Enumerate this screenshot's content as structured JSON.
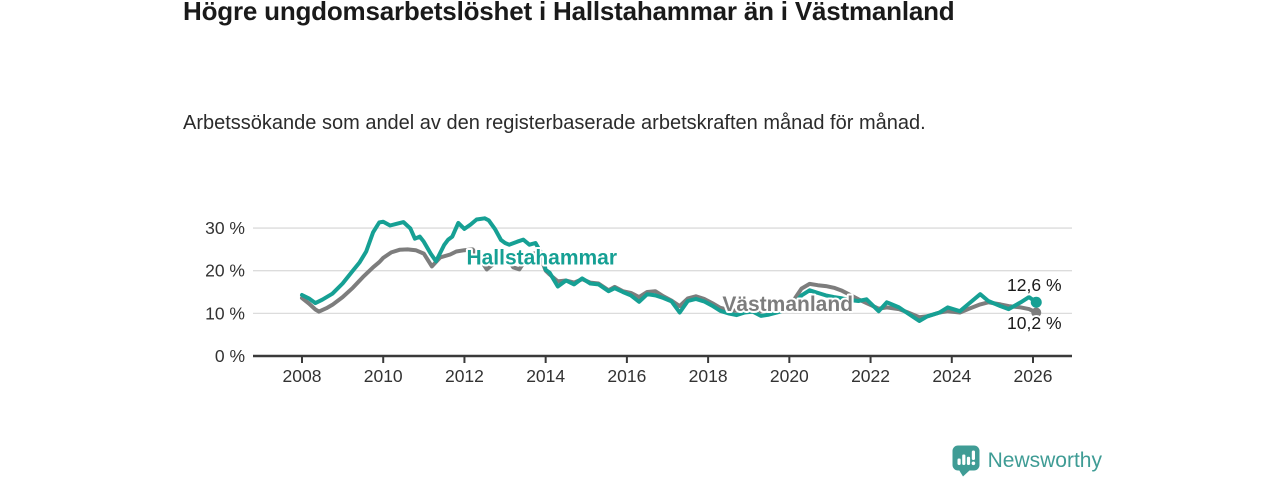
{
  "header": {
    "title": "Högre ungdomsarbetslöshet i Hallstahammar än i Västmanland",
    "subtitle": "Arbetssökande som andel av den registerbaserade arbetskraften månad för månad."
  },
  "footer": {
    "brand": "Newsworthy",
    "logo_icon": "newsworthy-bar-chart-bubble-icon",
    "brand_color": "#3f9c95"
  },
  "chart_data": {
    "type": "line",
    "title": "Högre ungdomsarbetslöshet i Hallstahammar än i Västmanland",
    "subtitle": "Arbetssökande som andel av den registerbaserade arbetskraften månad för månad.",
    "unit": "%",
    "grid": true,
    "x_range": [
      2007.04,
      2026.96
    ],
    "y_range": [
      0,
      34
    ],
    "x_ticks": [
      "2008",
      "2010",
      "2012",
      "2014",
      "2016",
      "2018",
      "2020",
      "2022",
      "2024",
      "2026"
    ],
    "x_tick_values": [
      2008,
      2010,
      2012,
      2014,
      2016,
      2018,
      2020,
      2022,
      2024,
      2026
    ],
    "y_ticks": [
      {
        "label": "30 %",
        "value": 30
      },
      {
        "label": "20 %",
        "value": 20
      },
      {
        "label": "10 %",
        "value": 10
      },
      {
        "label": "0 %",
        "value": 0
      }
    ],
    "colors": {
      "accent": "#16a094",
      "muted": "#7d7d7d",
      "axis": "#3a3a3a",
      "gridline": "#dcdcdc",
      "tick_text": "#333333"
    },
    "series": [
      {
        "name": "Västmanland",
        "color": "#7d7d7d",
        "end_label": "10,2 %",
        "end_value": 10.2,
        "end_dot_radius": 5,
        "points": [
          [
            2008.0,
            13.6
          ],
          [
            2008.17,
            12.3
          ],
          [
            2008.33,
            10.9
          ],
          [
            2008.42,
            10.4
          ],
          [
            2008.6,
            11.2
          ],
          [
            2008.75,
            12.0
          ],
          [
            2009.0,
            13.8
          ],
          [
            2009.25,
            16.0
          ],
          [
            2009.5,
            18.5
          ],
          [
            2009.75,
            20.8
          ],
          [
            2009.9,
            22.0
          ],
          [
            2010.0,
            23.0
          ],
          [
            2010.2,
            24.3
          ],
          [
            2010.4,
            24.9
          ],
          [
            2010.6,
            25.0
          ],
          [
            2010.8,
            24.8
          ],
          [
            2011.0,
            24.0
          ],
          [
            2011.2,
            21.0
          ],
          [
            2011.4,
            23.1
          ],
          [
            2011.65,
            23.8
          ],
          [
            2011.8,
            24.5
          ],
          [
            2012.0,
            24.8
          ],
          [
            2012.2,
            25.0
          ],
          [
            2012.4,
            22.5
          ],
          [
            2012.55,
            20.3
          ],
          [
            2012.7,
            21.5
          ],
          [
            2012.9,
            23.8
          ],
          [
            2013.05,
            23.0
          ],
          [
            2013.2,
            20.8
          ],
          [
            2013.35,
            20.3
          ],
          [
            2013.5,
            22.5
          ],
          [
            2013.65,
            23.8
          ],
          [
            2013.8,
            24.3
          ],
          [
            2013.9,
            22.5
          ],
          [
            2014.0,
            20.0
          ],
          [
            2014.1,
            19.1
          ],
          [
            2014.3,
            17.5
          ],
          [
            2014.5,
            17.7
          ],
          [
            2014.7,
            17.2
          ],
          [
            2014.9,
            18.0
          ],
          [
            2015.1,
            17.2
          ],
          [
            2015.3,
            17.0
          ],
          [
            2015.55,
            15.4
          ],
          [
            2015.7,
            16.2
          ],
          [
            2015.9,
            15.2
          ],
          [
            2016.1,
            14.8
          ],
          [
            2016.3,
            13.8
          ],
          [
            2016.5,
            15.0
          ],
          [
            2016.7,
            15.2
          ],
          [
            2016.9,
            14.0
          ],
          [
            2017.1,
            13.0
          ],
          [
            2017.3,
            11.7
          ],
          [
            2017.5,
            13.5
          ],
          [
            2017.7,
            14.0
          ],
          [
            2017.9,
            13.4
          ],
          [
            2018.1,
            12.4
          ],
          [
            2018.3,
            11.3
          ],
          [
            2018.5,
            10.8
          ],
          [
            2018.7,
            10.6
          ],
          [
            2018.9,
            11.0
          ],
          [
            2019.1,
            11.2
          ],
          [
            2019.3,
            10.5
          ],
          [
            2019.5,
            10.7
          ],
          [
            2019.7,
            11.1
          ],
          [
            2019.9,
            11.8
          ],
          [
            2020.1,
            13.0
          ],
          [
            2020.3,
            15.8
          ],
          [
            2020.5,
            16.9
          ],
          [
            2020.7,
            16.6
          ],
          [
            2020.9,
            16.4
          ],
          [
            2021.1,
            16.0
          ],
          [
            2021.3,
            15.3
          ],
          [
            2021.5,
            14.3
          ],
          [
            2021.7,
            13.3
          ],
          [
            2021.9,
            12.4
          ],
          [
            2022.2,
            11.1
          ],
          [
            2022.4,
            11.4
          ],
          [
            2022.7,
            11.0
          ],
          [
            2022.9,
            10.3
          ],
          [
            2023.2,
            9.1
          ],
          [
            2023.4,
            9.3
          ],
          [
            2023.7,
            10.2
          ],
          [
            2023.9,
            10.5
          ],
          [
            2024.2,
            10.2
          ],
          [
            2024.4,
            11.0
          ],
          [
            2024.7,
            12.1
          ],
          [
            2024.9,
            12.6
          ],
          [
            2025.2,
            12.1
          ],
          [
            2025.4,
            11.7
          ],
          [
            2025.7,
            11.4
          ],
          [
            2025.9,
            11.0
          ],
          [
            2026.08,
            10.2
          ]
        ]
      },
      {
        "name": "Hallstahammar",
        "color": "#16a094",
        "end_label": "12,6 %",
        "end_value": 12.6,
        "end_dot_radius": 5.5,
        "points": [
          [
            2008.0,
            14.3
          ],
          [
            2008.17,
            13.5
          ],
          [
            2008.33,
            12.4
          ],
          [
            2008.5,
            13.2
          ],
          [
            2008.75,
            14.6
          ],
          [
            2009.0,
            17.0
          ],
          [
            2009.25,
            20.0
          ],
          [
            2009.42,
            22.0
          ],
          [
            2009.58,
            24.5
          ],
          [
            2009.75,
            29.0
          ],
          [
            2009.9,
            31.3
          ],
          [
            2010.0,
            31.5
          ],
          [
            2010.17,
            30.6
          ],
          [
            2010.33,
            31.0
          ],
          [
            2010.5,
            31.4
          ],
          [
            2010.67,
            29.9
          ],
          [
            2010.78,
            27.5
          ],
          [
            2010.9,
            28.0
          ],
          [
            2011.0,
            26.8
          ],
          [
            2011.17,
            24.0
          ],
          [
            2011.3,
            22.2
          ],
          [
            2011.5,
            26.0
          ],
          [
            2011.6,
            27.3
          ],
          [
            2011.7,
            28.0
          ],
          [
            2011.85,
            31.2
          ],
          [
            2012.0,
            29.8
          ],
          [
            2012.15,
            30.8
          ],
          [
            2012.3,
            32.0
          ],
          [
            2012.5,
            32.3
          ],
          [
            2012.6,
            31.8
          ],
          [
            2012.75,
            29.8
          ],
          [
            2012.9,
            27.2
          ],
          [
            2013.0,
            26.5
          ],
          [
            2013.1,
            26.1
          ],
          [
            2013.3,
            26.8
          ],
          [
            2013.45,
            27.3
          ],
          [
            2013.6,
            26.1
          ],
          [
            2013.75,
            26.5
          ],
          [
            2013.9,
            24.0
          ],
          [
            2014.0,
            20.2
          ],
          [
            2014.1,
            19.5
          ],
          [
            2014.3,
            16.3
          ],
          [
            2014.5,
            17.7
          ],
          [
            2014.7,
            16.8
          ],
          [
            2014.9,
            18.2
          ],
          [
            2015.1,
            17.0
          ],
          [
            2015.3,
            16.8
          ],
          [
            2015.55,
            15.2
          ],
          [
            2015.7,
            15.9
          ],
          [
            2015.9,
            15.0
          ],
          [
            2016.1,
            14.2
          ],
          [
            2016.3,
            12.7
          ],
          [
            2016.5,
            14.5
          ],
          [
            2016.7,
            14.2
          ],
          [
            2016.9,
            13.6
          ],
          [
            2017.1,
            12.8
          ],
          [
            2017.3,
            10.2
          ],
          [
            2017.5,
            12.9
          ],
          [
            2017.7,
            13.4
          ],
          [
            2017.9,
            12.8
          ],
          [
            2018.1,
            11.8
          ],
          [
            2018.3,
            10.6
          ],
          [
            2018.5,
            10.0
          ],
          [
            2018.7,
            9.6
          ],
          [
            2018.9,
            10.2
          ],
          [
            2019.1,
            10.4
          ],
          [
            2019.3,
            9.4
          ],
          [
            2019.5,
            9.7
          ],
          [
            2019.7,
            10.2
          ],
          [
            2019.9,
            10.8
          ],
          [
            2020.1,
            12.0
          ],
          [
            2020.3,
            14.2
          ],
          [
            2020.5,
            15.4
          ],
          [
            2020.7,
            14.8
          ],
          [
            2020.9,
            14.2
          ],
          [
            2021.1,
            13.8
          ],
          [
            2021.3,
            13.5
          ],
          [
            2021.5,
            13.1
          ],
          [
            2021.7,
            12.9
          ],
          [
            2021.9,
            13.3
          ],
          [
            2022.2,
            10.5
          ],
          [
            2022.4,
            12.6
          ],
          [
            2022.7,
            11.4
          ],
          [
            2022.9,
            10.1
          ],
          [
            2023.2,
            8.2
          ],
          [
            2023.4,
            9.3
          ],
          [
            2023.7,
            10.2
          ],
          [
            2023.9,
            11.4
          ],
          [
            2024.2,
            10.5
          ],
          [
            2024.4,
            12.1
          ],
          [
            2024.7,
            14.5
          ],
          [
            2024.9,
            12.9
          ],
          [
            2025.2,
            11.7
          ],
          [
            2025.4,
            11.0
          ],
          [
            2025.7,
            12.6
          ],
          [
            2025.9,
            13.8
          ],
          [
            2026.08,
            12.6
          ]
        ]
      }
    ],
    "annotations": [
      {
        "text": "Hallstahammar",
        "year": 2012.05,
        "value": 21.5,
        "color": "#16a094",
        "bold": true,
        "size": 21
      },
      {
        "text": "Västmanland",
        "year": 2018.35,
        "value": 10.5,
        "color": "#7d7d7d",
        "bold": true,
        "size": 21
      },
      {
        "text": "12,6 %",
        "year": 2025.36,
        "value": 15.2,
        "color": "#1a1a1a",
        "bold": false,
        "size": 17.5
      },
      {
        "text": "10,2 %",
        "year": 2025.36,
        "value": 6.3,
        "color": "#1a1a1a",
        "bold": false,
        "size": 17.5
      }
    ],
    "legend_position": "inline-labels"
  }
}
